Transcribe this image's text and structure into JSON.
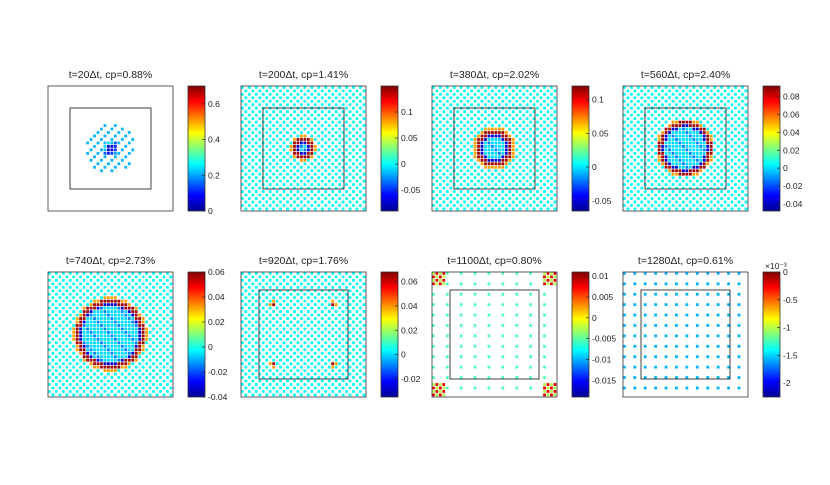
{
  "figure": {
    "description_rows": 2,
    "description_cols": 4
  },
  "chart_data": [
    {
      "type": "heatmap",
      "title": "t=20Δt, cp=0.88%",
      "colorbar": {
        "min": 0,
        "max": 0.7,
        "ticks": [
          0,
          0.2,
          0.4,
          0.6
        ],
        "tick_labels": [
          "0",
          "0.2",
          "0.4",
          "0.6"
        ],
        "exponent": ""
      },
      "feature": {
        "kind": "spot",
        "radius": 0.06
      },
      "inner_square": true
    },
    {
      "type": "heatmap",
      "title": "t=200Δt, cp=1.41%",
      "colorbar": {
        "min": -0.09,
        "max": 0.15,
        "ticks": [
          -0.05,
          0,
          0.05,
          0.1
        ],
        "tick_labels": [
          "-0.05",
          "0",
          "0.05",
          "0.1"
        ],
        "exponent": ""
      },
      "feature": {
        "kind": "ring",
        "radius": 0.13
      },
      "inner_square": true
    },
    {
      "type": "heatmap",
      "title": "t=380Δt, cp=2.02%",
      "colorbar": {
        "min": -0.065,
        "max": 0.12,
        "ticks": [
          -0.05,
          0,
          0.05,
          0.1
        ],
        "tick_labels": [
          "-0.05",
          "0",
          "0.05",
          "0.1"
        ],
        "exponent": ""
      },
      "feature": {
        "kind": "ring",
        "radius": 0.27
      },
      "inner_square": true
    },
    {
      "type": "heatmap",
      "title": "t=560Δt, cp=2.40%",
      "colorbar": {
        "min": -0.048,
        "max": 0.092,
        "ticks": [
          -0.04,
          -0.02,
          0,
          0.02,
          0.04,
          0.06,
          0.08
        ],
        "tick_labels": [
          "-0.04",
          "-0.02",
          "0",
          "0.02",
          "0.04",
          "0.06",
          "0.08"
        ],
        "exponent": ""
      },
      "feature": {
        "kind": "ring",
        "radius": 0.4
      },
      "inner_square": true
    },
    {
      "type": "heatmap",
      "title": "t=740Δt, cp=2.73%",
      "colorbar": {
        "min": -0.04,
        "max": 0.06,
        "ticks": [
          -0.04,
          -0.02,
          0,
          0.02,
          0.04,
          0.06
        ],
        "tick_labels": [
          "-0.04",
          "-0.02",
          "0",
          "0.02",
          "0.04",
          "0.06"
        ],
        "exponent": ""
      },
      "feature": {
        "kind": "ring",
        "radius": 0.52
      },
      "inner_square": false
    },
    {
      "type": "heatmap",
      "title": "t=920Δt, cp=1.76%",
      "colorbar": {
        "min": -0.035,
        "max": 0.068,
        "ticks": [
          -0.02,
          0,
          0.02,
          0.04,
          0.06
        ],
        "tick_labels": [
          "-0.02",
          "0",
          "0.02",
          "0.04",
          "0.06"
        ],
        "exponent": ""
      },
      "feature": {
        "kind": "corner-arcs",
        "radius": 0.66
      },
      "inner_square": true
    },
    {
      "type": "heatmap",
      "title": "t=1100Δt, cp=0.80%",
      "colorbar": {
        "min": -0.019,
        "max": 0.011,
        "ticks": [
          -0.015,
          -0.01,
          -0.005,
          0,
          0.005,
          0.01
        ],
        "tick_labels": [
          "-0.015",
          "-0.01",
          "-0.005",
          "0",
          "0.005",
          "0.01"
        ],
        "exponent": ""
      },
      "feature": {
        "kind": "corner-spots",
        "radius": 0.08
      },
      "inner_square": true
    },
    {
      "type": "heatmap",
      "title": "t=1280Δt, cp=0.61%",
      "colorbar": {
        "min": -2.25,
        "max": 0,
        "ticks": [
          -2,
          -1.5,
          -1,
          -0.5,
          0
        ],
        "tick_labels": [
          "-2",
          "-1.5",
          "-1",
          "-0.5",
          "0"
        ],
        "exponent": "×10⁻³"
      },
      "feature": {
        "kind": "faint",
        "radius": 0
      },
      "inner_square": true
    }
  ]
}
